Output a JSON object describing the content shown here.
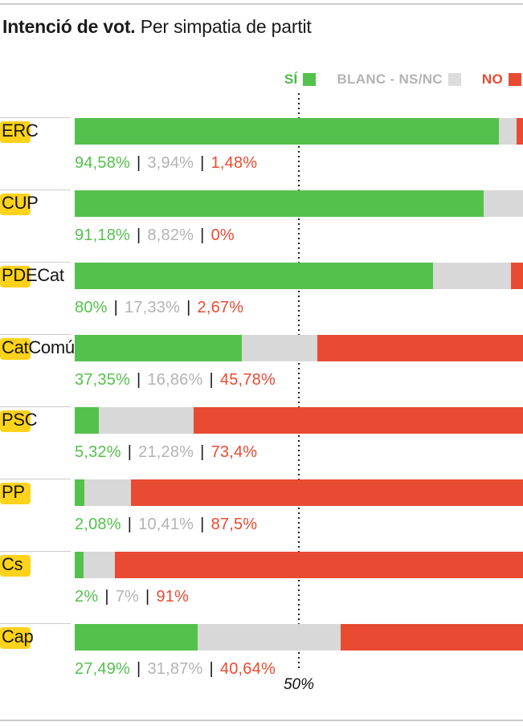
{
  "page": {
    "title_bold": "Intenció de vot.",
    "title_regular": "Per simpatia de partit"
  },
  "legend": {
    "items": [
      {
        "id": "si",
        "label": "SÍ",
        "swatch_color": "#54c14c",
        "text_color": "#4cbb45"
      },
      {
        "id": "blanc",
        "label": "BLANC - NS/NC",
        "swatch_color": "#dcdcdc",
        "text_color": "#b3b3b3"
      },
      {
        "id": "no",
        "label": "NO",
        "swatch_color": "#e84b31",
        "text_color": "#e84b31"
      }
    ]
  },
  "colors": {
    "si": "#54c14c",
    "blanc_bar": "#d8d8d8",
    "blanc_text": "#b3b3b3",
    "no": "#e84b31",
    "pipe": "#1a1a1a",
    "highlight": "#ffd21c"
  },
  "value_separator": "|",
  "chart_data": {
    "type": "bar",
    "orientation": "horizontal_stacked",
    "title": "Intenció de vot. Per simpatia de partit",
    "categories": [
      "ERC",
      "CUP",
      "PDECat",
      "CatComú",
      "PSC",
      "PP",
      "Cs",
      "Cap"
    ],
    "series": [
      {
        "name": "SÍ",
        "values": [
          94.58,
          91.18,
          80,
          37.35,
          5.32,
          2.08,
          2,
          27.49
        ]
      },
      {
        "name": "BLANC - NS/NC",
        "values": [
          3.94,
          8.82,
          17.33,
          16.86,
          21.28,
          10.41,
          7,
          31.87
        ]
      },
      {
        "name": "NO",
        "values": [
          1.48,
          0,
          2.67,
          45.78,
          73.4,
          87.5,
          91,
          40.64
        ]
      }
    ],
    "value_labels": [
      [
        "94,58%",
        "3,94%",
        "1,48%"
      ],
      [
        "91,18%",
        "8,82%",
        "0%"
      ],
      [
        "80%",
        "17,33%",
        "2,67%"
      ],
      [
        "37,35%",
        "16,86%",
        "45,78%"
      ],
      [
        "5,32%",
        "21,28%",
        "73,4%"
      ],
      [
        "2,08%",
        "10,41%",
        "87,5%"
      ],
      [
        "2%",
        "7%",
        "91%"
      ],
      [
        "27,49%",
        "31,87%",
        "40,64%"
      ]
    ],
    "xlim": [
      0,
      100
    ],
    "grid": false,
    "legend_position": "top-right",
    "reference_line": {
      "value": 50,
      "label": "50%"
    }
  }
}
